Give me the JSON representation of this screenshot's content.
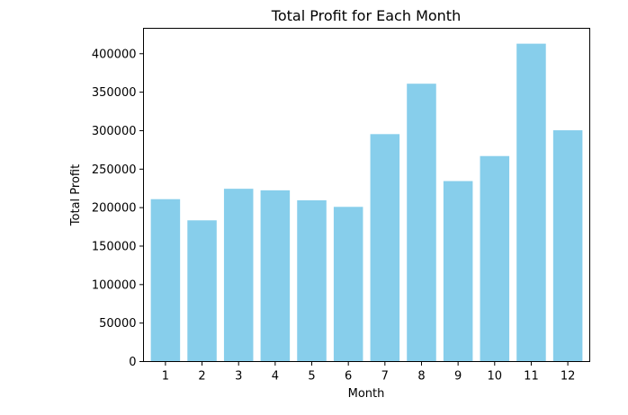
{
  "chart_data": {
    "type": "bar",
    "title": "Total Profit for Each Month",
    "xlabel": "Month",
    "ylabel": "Total Profit",
    "categories": [
      "1",
      "2",
      "3",
      "4",
      "5",
      "6",
      "7",
      "8",
      "9",
      "10",
      "11",
      "12"
    ],
    "values": [
      211000,
      183500,
      224500,
      222500,
      209500,
      201000,
      295500,
      361000,
      234500,
      267000,
      413000,
      300500
    ],
    "ylim": [
      0,
      433000
    ],
    "yticks": [
      0,
      50000,
      100000,
      150000,
      200000,
      250000,
      300000,
      350000,
      400000
    ],
    "ytick_labels": [
      "0",
      "50000",
      "100000",
      "150000",
      "200000",
      "250000",
      "300000",
      "350000",
      "400000"
    ],
    "bar_color": "#87CEEB",
    "grid": false,
    "legend": "none"
  }
}
